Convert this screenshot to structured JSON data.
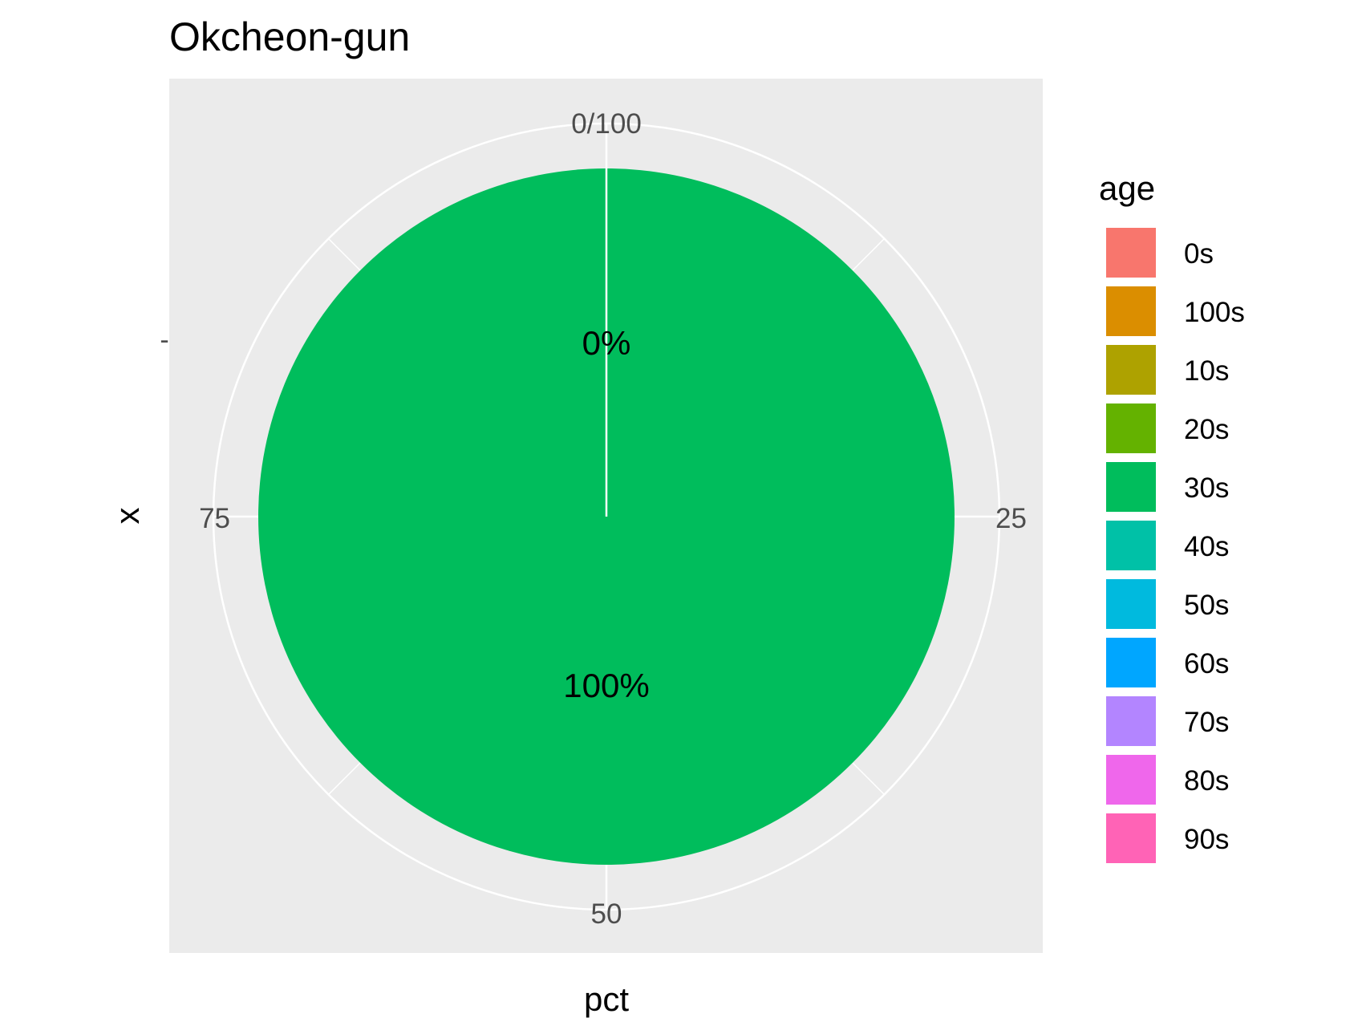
{
  "chart_data": {
    "type": "pie",
    "title": "Okcheon-gun",
    "xlabel": "pct",
    "ylabel": "x",
    "y_tick_label": "-",
    "theta_range": [
      0,
      100
    ],
    "theta_ticks": [
      {
        "value": 0,
        "label": "0/100"
      },
      {
        "value": 25,
        "label": "25"
      },
      {
        "value": 50,
        "label": "50"
      },
      {
        "value": 75,
        "label": "75"
      }
    ],
    "legend_position": "right",
    "legend": {
      "title": "age",
      "entries": [
        {
          "label": "0s",
          "color": "#F8766D"
        },
        {
          "label": "100s",
          "color": "#DB8E00"
        },
        {
          "label": "10s",
          "color": "#AEA200"
        },
        {
          "label": "20s",
          "color": "#64B200"
        },
        {
          "label": "30s",
          "color": "#00BD5C"
        },
        {
          "label": "40s",
          "color": "#00C1A7"
        },
        {
          "label": "50s",
          "color": "#00BADE"
        },
        {
          "label": "60s",
          "color": "#00A6FF"
        },
        {
          "label": "70s",
          "color": "#B385FF"
        },
        {
          "label": "80s",
          "color": "#EF67EB"
        },
        {
          "label": "90s",
          "color": "#FF63B6"
        }
      ]
    },
    "slices": [
      {
        "category": "30s",
        "value": 100,
        "label": "100%",
        "color": "#00BD5C"
      },
      {
        "category": "",
        "value": 0,
        "label": "0%"
      }
    ],
    "panel_background": "#EBEBEB",
    "grid": true
  }
}
